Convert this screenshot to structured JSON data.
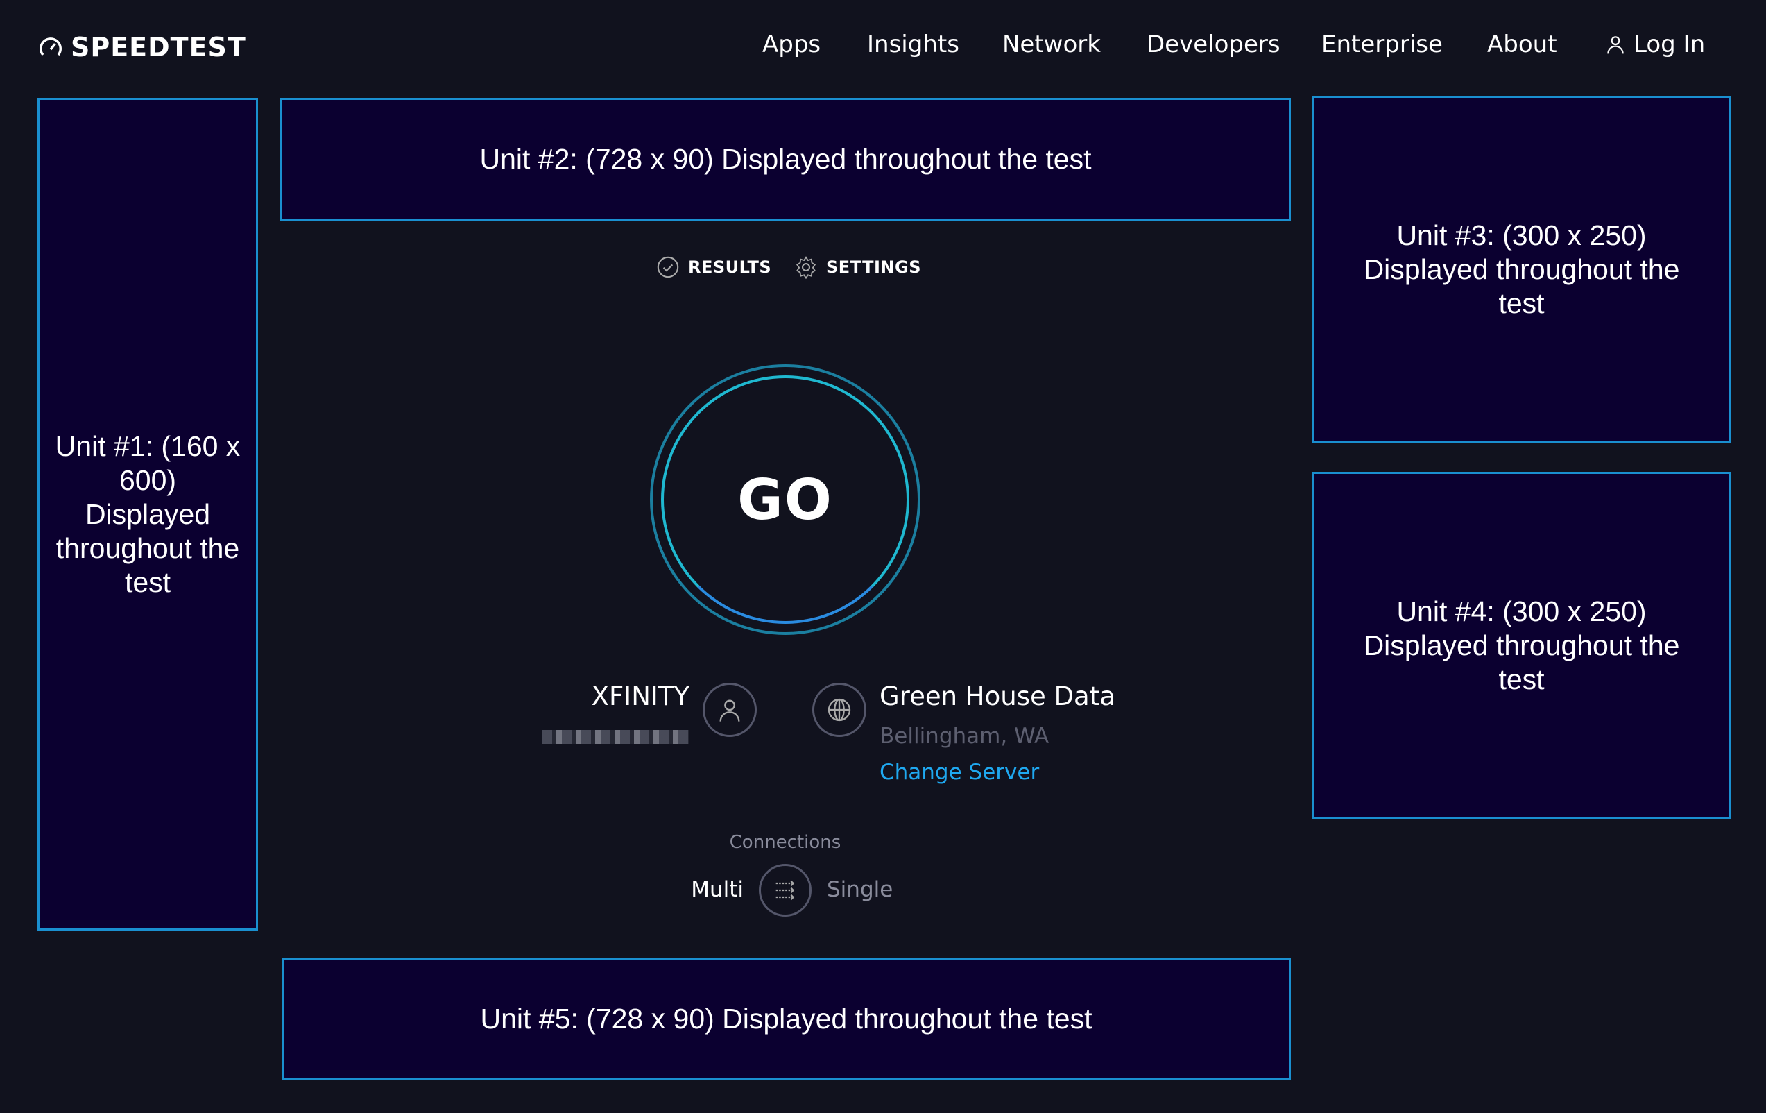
{
  "header": {
    "logo": "SPEEDTEST",
    "nav": [
      "Apps",
      "Insights",
      "Network",
      "Developers",
      "Enterprise",
      "About"
    ],
    "login": "Log In"
  },
  "ads": {
    "unit1": "Unit #1: (160 x 600) Displayed throughout the test",
    "unit2": "Unit #2: (728 x 90) Displayed throughout the test",
    "unit3": "Unit #3: (300 x 250) Displayed throughout the test",
    "unit4": "Unit #4: (300 x 250) Displayed throughout the test",
    "unit5": "Unit #5: (728 x 90) Displayed throughout the test"
  },
  "tabs": {
    "results": "RESULTS",
    "settings": "SETTINGS"
  },
  "go": "GO",
  "isp": {
    "name": "XFINITY"
  },
  "server": {
    "name": "Green House Data",
    "location": "Bellingham, WA",
    "change": "Change Server"
  },
  "connections": {
    "label": "Connections",
    "multi": "Multi",
    "single": "Single"
  },
  "colors": {
    "background": "#11121e",
    "ad_border": "#1a8fd0",
    "link": "#1fa8f0",
    "ring": "#1fb8d0"
  }
}
